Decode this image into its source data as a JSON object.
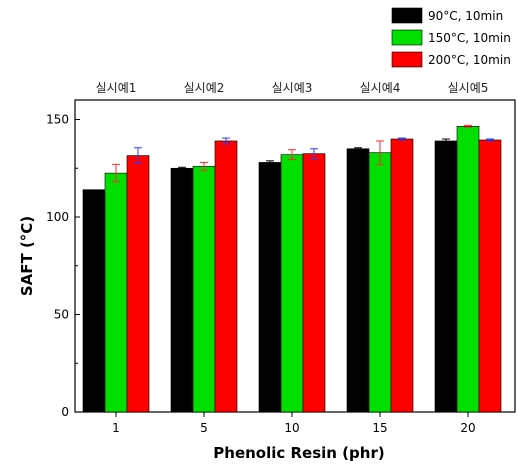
{
  "chart_data": {
    "type": "bar",
    "title": "",
    "xlabel": "Phenolic Resin (phr)",
    "ylabel": "SAFT (°C)",
    "ylim": [
      0,
      160
    ],
    "yticks": [
      0,
      50,
      100,
      150
    ],
    "categories": [
      "1",
      "5",
      "10",
      "15",
      "20"
    ],
    "top_labels": [
      "실시예1",
      "실시예2",
      "실시예3",
      "실시예4",
      "실시예5"
    ],
    "legend_position": "top-right",
    "series": [
      {
        "name": "90°C, 10min",
        "color": "#000000",
        "values": [
          114,
          125,
          128,
          135,
          139
        ],
        "errors": [
          0,
          0.5,
          0.8,
          0.5,
          1
        ]
      },
      {
        "name": "150°C, 10min",
        "color": "#00e000",
        "values": [
          122.5,
          126,
          132,
          133,
          146.5
        ],
        "errors": [
          4.5,
          2,
          2.5,
          6,
          0.5
        ]
      },
      {
        "name": "200°C, 10min",
        "color": "#ff0000",
        "values": [
          131.5,
          139,
          132.5,
          140,
          139.5
        ],
        "errors": [
          4,
          1.5,
          2.5,
          0.5,
          0.5
        ]
      }
    ]
  }
}
